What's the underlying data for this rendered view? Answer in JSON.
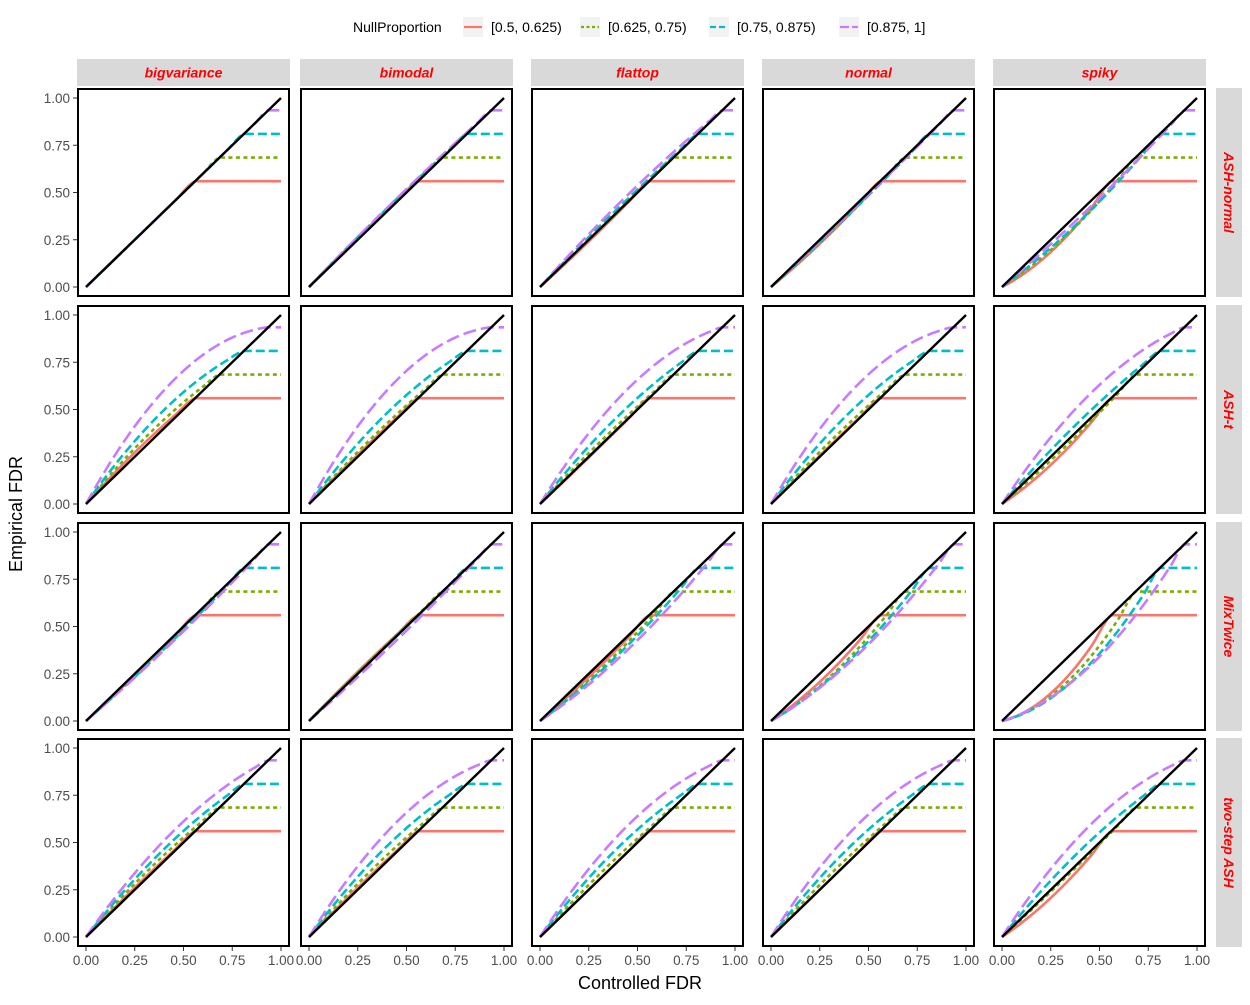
{
  "chart_data": {
    "type": "line",
    "xlabel": "Controlled FDR",
    "ylabel": "Empirical FDR",
    "xlim": [
      0,
      1
    ],
    "ylim": [
      0,
      1
    ],
    "x_ticks": [
      "0.00",
      "0.25",
      "0.50",
      "0.75",
      "1.00"
    ],
    "y_ticks": [
      "0.00",
      "0.25",
      "0.50",
      "0.75",
      "1.00"
    ],
    "grid": false,
    "legend": {
      "title": "NullProportion",
      "position": "top",
      "entries": [
        {
          "label": "[0.5, 0.625)",
          "color": "#F8766D",
          "dash": "solid"
        },
        {
          "label": "[0.625, 0.75)",
          "color": "#7CAE00",
          "dash": "dotted"
        },
        {
          "label": "[0.75, 0.875)",
          "color": "#00BFC4",
          "dash": "dashed"
        },
        {
          "label": "[0.875, 1]",
          "color": "#C77CFF",
          "dash": "longdash"
        }
      ]
    },
    "reference_line": {
      "x": [
        0,
        1
      ],
      "y": [
        0,
        1
      ],
      "color": "#000000"
    },
    "plateaus": [
      0.56,
      0.685,
      0.81,
      0.935
    ],
    "columns": [
      "bigvariance",
      "bimodal",
      "flattop",
      "normal",
      "spiky"
    ],
    "rows": [
      "ASH-normal",
      "ASH-t",
      "MixTwice",
      "two-step ASH"
    ],
    "panels": [
      [
        {
          "dev": [
            0,
            0,
            0,
            0
          ]
        },
        {
          "dev": [
            0.02,
            0.02,
            0.02,
            0.02
          ]
        },
        {
          "dev": [
            -0.02,
            0,
            0.02,
            0.04
          ]
        },
        {
          "dev": [
            -0.05,
            -0.035,
            -0.025,
            -0.015
          ]
        },
        {
          "dev": [
            -0.15,
            -0.11,
            -0.08,
            -0.04
          ]
        }
      ],
      [
        {
          "dev": [
            0.04,
            0.07,
            0.12,
            0.22
          ]
        },
        {
          "dev": [
            0.02,
            0.04,
            0.1,
            0.22
          ]
        },
        {
          "dev": [
            -0.01,
            0.03,
            0.08,
            0.17
          ]
        },
        {
          "dev": [
            0.01,
            0.04,
            0.1,
            0.2
          ]
        },
        {
          "dev": [
            -0.1,
            -0.04,
            0.05,
            0.14
          ]
        }
      ],
      [
        {
          "dev": [
            -0.02,
            -0.025,
            -0.03,
            -0.035
          ]
        },
        {
          "dev": [
            0.02,
            0.01,
            0,
            -0.03
          ]
        },
        {
          "dev": [
            -0.04,
            -0.07,
            -0.08,
            -0.1
          ]
        },
        {
          "dev": [
            -0.1,
            -0.13,
            -0.13,
            -0.13
          ]
        },
        {
          "dev": [
            -0.24,
            -0.24,
            -0.24,
            -0.22
          ]
        }
      ],
      [
        {
          "dev": [
            0.02,
            0.05,
            0.08,
            0.12
          ]
        },
        {
          "dev": [
            0.02,
            0.05,
            0.1,
            0.17
          ]
        },
        {
          "dev": [
            0,
            0.04,
            0.09,
            0.15
          ]
        },
        {
          "dev": [
            0,
            0.04,
            0.09,
            0.16
          ]
        },
        {
          "dev": [
            -0.1,
            -0.02,
            0.07,
            0.15
          ]
        }
      ]
    ]
  }
}
